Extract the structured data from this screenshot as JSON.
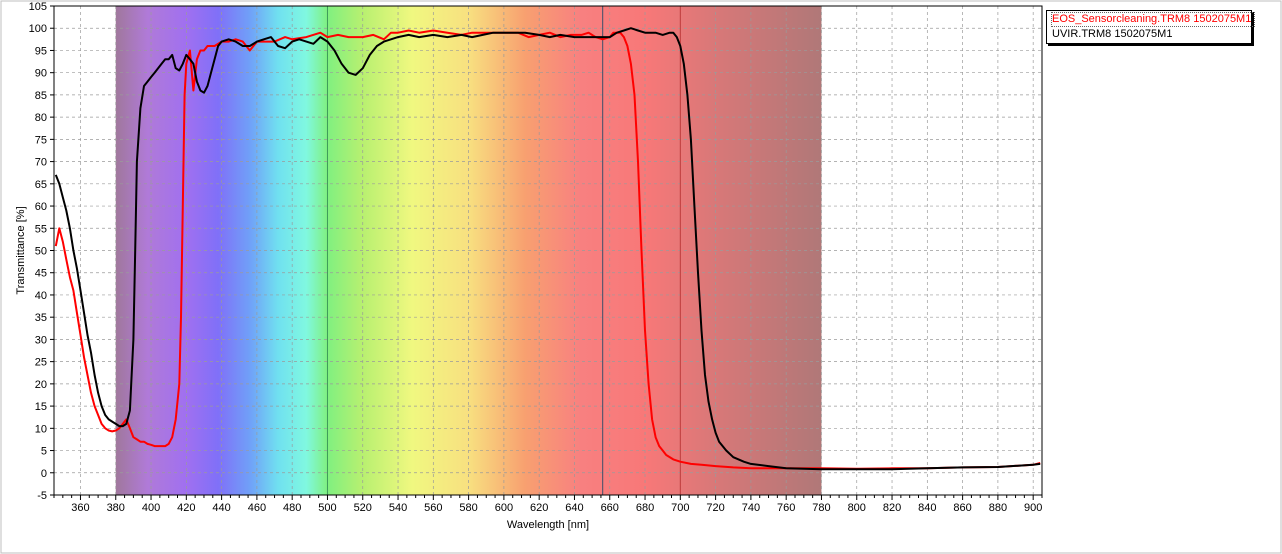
{
  "chart_data": {
    "type": "line",
    "xlabel": "Wavelength [nm]",
    "ylabel": "Transmittance [%]",
    "xlim": [
      345,
      905
    ],
    "ylim": [
      -5,
      105
    ],
    "x_ticks": [
      360,
      380,
      400,
      420,
      440,
      460,
      480,
      500,
      520,
      540,
      560,
      580,
      600,
      620,
      640,
      660,
      680,
      700,
      720,
      740,
      760,
      780,
      800,
      820,
      840,
      860,
      880,
      900
    ],
    "y_ticks": [
      -5,
      0,
      5,
      10,
      15,
      20,
      25,
      30,
      35,
      40,
      45,
      50,
      55,
      60,
      65,
      70,
      75,
      80,
      85,
      90,
      95,
      100,
      105
    ],
    "grid": true,
    "legend_position": "top-right",
    "background_band": {
      "from": 380,
      "to": 780
    },
    "markers": [
      {
        "x": 500,
        "color": "#3c9a5a"
      },
      {
        "x": 656,
        "color": "#3c4f6a"
      },
      {
        "x": 700,
        "color": "#c03a3a"
      }
    ],
    "series": [
      {
        "name": "EOS_Sensorcleaning.TRM8 1502075M1",
        "color": "#ff0000",
        "points": [
          [
            346,
            51
          ],
          [
            348,
            55
          ],
          [
            350,
            52
          ],
          [
            352,
            48
          ],
          [
            354,
            44
          ],
          [
            356,
            41
          ],
          [
            358,
            36
          ],
          [
            360,
            31
          ],
          [
            362,
            26
          ],
          [
            364,
            22
          ],
          [
            366,
            18
          ],
          [
            368,
            15
          ],
          [
            370,
            13
          ],
          [
            372,
            11
          ],
          [
            374,
            10
          ],
          [
            376,
            9.5
          ],
          [
            378,
            9.3
          ],
          [
            380,
            9.5
          ],
          [
            382,
            10
          ],
          [
            384,
            11
          ],
          [
            386,
            12
          ],
          [
            388,
            10
          ],
          [
            390,
            8
          ],
          [
            392,
            7.5
          ],
          [
            394,
            7
          ],
          [
            396,
            7
          ],
          [
            398,
            6.5
          ],
          [
            400,
            6.3
          ],
          [
            402,
            6
          ],
          [
            404,
            6
          ],
          [
            406,
            6
          ],
          [
            408,
            6
          ],
          [
            410,
            6.5
          ],
          [
            412,
            8
          ],
          [
            414,
            12
          ],
          [
            416,
            20
          ],
          [
            417,
            35
          ],
          [
            418,
            60
          ],
          [
            419,
            85
          ],
          [
            420,
            92
          ],
          [
            422,
            95
          ],
          [
            424,
            86
          ],
          [
            426,
            93
          ],
          [
            428,
            95
          ],
          [
            430,
            95
          ],
          [
            432,
            96
          ],
          [
            436,
            96
          ],
          [
            440,
            97
          ],
          [
            444,
            97
          ],
          [
            448,
            97.5
          ],
          [
            452,
            97
          ],
          [
            456,
            95
          ],
          [
            460,
            97
          ],
          [
            464,
            97
          ],
          [
            470,
            97
          ],
          [
            476,
            98
          ],
          [
            480,
            97.5
          ],
          [
            488,
            98
          ],
          [
            496,
            99
          ],
          [
            500,
            98
          ],
          [
            506,
            98.5
          ],
          [
            512,
            98
          ],
          [
            520,
            98
          ],
          [
            526,
            98.5
          ],
          [
            532,
            97.5
          ],
          [
            536,
            99
          ],
          [
            540,
            99
          ],
          [
            546,
            99.5
          ],
          [
            552,
            99
          ],
          [
            560,
            99.5
          ],
          [
            568,
            99
          ],
          [
            576,
            98.5
          ],
          [
            582,
            99
          ],
          [
            590,
            99
          ],
          [
            596,
            99
          ],
          [
            602,
            99
          ],
          [
            608,
            99
          ],
          [
            614,
            98
          ],
          [
            620,
            98.5
          ],
          [
            626,
            99
          ],
          [
            632,
            98
          ],
          [
            638,
            98.5
          ],
          [
            644,
            98.5
          ],
          [
            648,
            99
          ],
          [
            652,
            98
          ],
          [
            656,
            97.5
          ],
          [
            660,
            98
          ],
          [
            662,
            99
          ],
          [
            666,
            99
          ],
          [
            668,
            98
          ],
          [
            670,
            96
          ],
          [
            672,
            92
          ],
          [
            674,
            85
          ],
          [
            676,
            70
          ],
          [
            678,
            50
          ],
          [
            680,
            32
          ],
          [
            682,
            20
          ],
          [
            684,
            12
          ],
          [
            686,
            8
          ],
          [
            688,
            6
          ],
          [
            690,
            5
          ],
          [
            692,
            4
          ],
          [
            696,
            3
          ],
          [
            700,
            2.5
          ],
          [
            706,
            2
          ],
          [
            712,
            1.8
          ],
          [
            720,
            1.5
          ],
          [
            730,
            1.2
          ],
          [
            740,
            1.0
          ],
          [
            760,
            1.0
          ],
          [
            780,
            1.0
          ],
          [
            800,
            0.9
          ],
          [
            820,
            1.0
          ],
          [
            840,
            1.0
          ],
          [
            860,
            1.2
          ],
          [
            880,
            1.3
          ],
          [
            900,
            1.8
          ],
          [
            904,
            2.2
          ]
        ]
      },
      {
        "name": "UVIR.TRM8 1502075M1",
        "color": "#000000",
        "points": [
          [
            346,
            67
          ],
          [
            348,
            65
          ],
          [
            350,
            62
          ],
          [
            352,
            59
          ],
          [
            354,
            55
          ],
          [
            356,
            50
          ],
          [
            358,
            46
          ],
          [
            360,
            41
          ],
          [
            362,
            36
          ],
          [
            364,
            31
          ],
          [
            366,
            27
          ],
          [
            368,
            22
          ],
          [
            370,
            18
          ],
          [
            372,
            15
          ],
          [
            374,
            13
          ],
          [
            376,
            12
          ],
          [
            378,
            11.5
          ],
          [
            380,
            11
          ],
          [
            382,
            10.5
          ],
          [
            384,
            10.5
          ],
          [
            386,
            11
          ],
          [
            388,
            14
          ],
          [
            390,
            30
          ],
          [
            391,
            50
          ],
          [
            392,
            70
          ],
          [
            394,
            82
          ],
          [
            396,
            87
          ],
          [
            398,
            88
          ],
          [
            400,
            89
          ],
          [
            402,
            90
          ],
          [
            404,
            91
          ],
          [
            406,
            92
          ],
          [
            408,
            93
          ],
          [
            410,
            93
          ],
          [
            412,
            94
          ],
          [
            414,
            91
          ],
          [
            416,
            90.5
          ],
          [
            418,
            92
          ],
          [
            420,
            94
          ],
          [
            422,
            93
          ],
          [
            424,
            92
          ],
          [
            426,
            88
          ],
          [
            428,
            86
          ],
          [
            430,
            85.5
          ],
          [
            432,
            87
          ],
          [
            434,
            90
          ],
          [
            436,
            93
          ],
          [
            438,
            96
          ],
          [
            440,
            97
          ],
          [
            444,
            97.5
          ],
          [
            448,
            97
          ],
          [
            452,
            96
          ],
          [
            456,
            96
          ],
          [
            460,
            97
          ],
          [
            464,
            97.5
          ],
          [
            468,
            98
          ],
          [
            472,
            96
          ],
          [
            476,
            95.5
          ],
          [
            480,
            97
          ],
          [
            484,
            97.5
          ],
          [
            488,
            97
          ],
          [
            492,
            96.5
          ],
          [
            496,
            98
          ],
          [
            500,
            97
          ],
          [
            504,
            95
          ],
          [
            508,
            92
          ],
          [
            512,
            90
          ],
          [
            516,
            89.5
          ],
          [
            520,
            91
          ],
          [
            524,
            94
          ],
          [
            528,
            96
          ],
          [
            532,
            97
          ],
          [
            536,
            97.5
          ],
          [
            540,
            98
          ],
          [
            546,
            98.5
          ],
          [
            552,
            98
          ],
          [
            560,
            98.5
          ],
          [
            568,
            98
          ],
          [
            576,
            98.5
          ],
          [
            582,
            98
          ],
          [
            588,
            98.5
          ],
          [
            594,
            99
          ],
          [
            600,
            99
          ],
          [
            606,
            99
          ],
          [
            612,
            99
          ],
          [
            620,
            98.5
          ],
          [
            626,
            98
          ],
          [
            632,
            98.5
          ],
          [
            640,
            98
          ],
          [
            646,
            98
          ],
          [
            652,
            98
          ],
          [
            656,
            98
          ],
          [
            660,
            98
          ],
          [
            664,
            99
          ],
          [
            668,
            99.5
          ],
          [
            672,
            100
          ],
          [
            676,
            99.5
          ],
          [
            680,
            99
          ],
          [
            686,
            99
          ],
          [
            690,
            98.5
          ],
          [
            694,
            99
          ],
          [
            696,
            99
          ],
          [
            698,
            98
          ],
          [
            700,
            96
          ],
          [
            702,
            92
          ],
          [
            704,
            85
          ],
          [
            706,
            75
          ],
          [
            708,
            60
          ],
          [
            710,
            45
          ],
          [
            712,
            32
          ],
          [
            714,
            22
          ],
          [
            716,
            16
          ],
          [
            718,
            12
          ],
          [
            720,
            9
          ],
          [
            722,
            7
          ],
          [
            726,
            5
          ],
          [
            730,
            3.5
          ],
          [
            736,
            2.5
          ],
          [
            740,
            2
          ],
          [
            750,
            1.5
          ],
          [
            760,
            1.0
          ],
          [
            780,
            0.8
          ],
          [
            800,
            0.8
          ],
          [
            820,
            0.8
          ],
          [
            840,
            1.0
          ],
          [
            860,
            1.2
          ],
          [
            880,
            1.3
          ],
          [
            900,
            1.8
          ],
          [
            904,
            2.0
          ]
        ]
      }
    ]
  }
}
